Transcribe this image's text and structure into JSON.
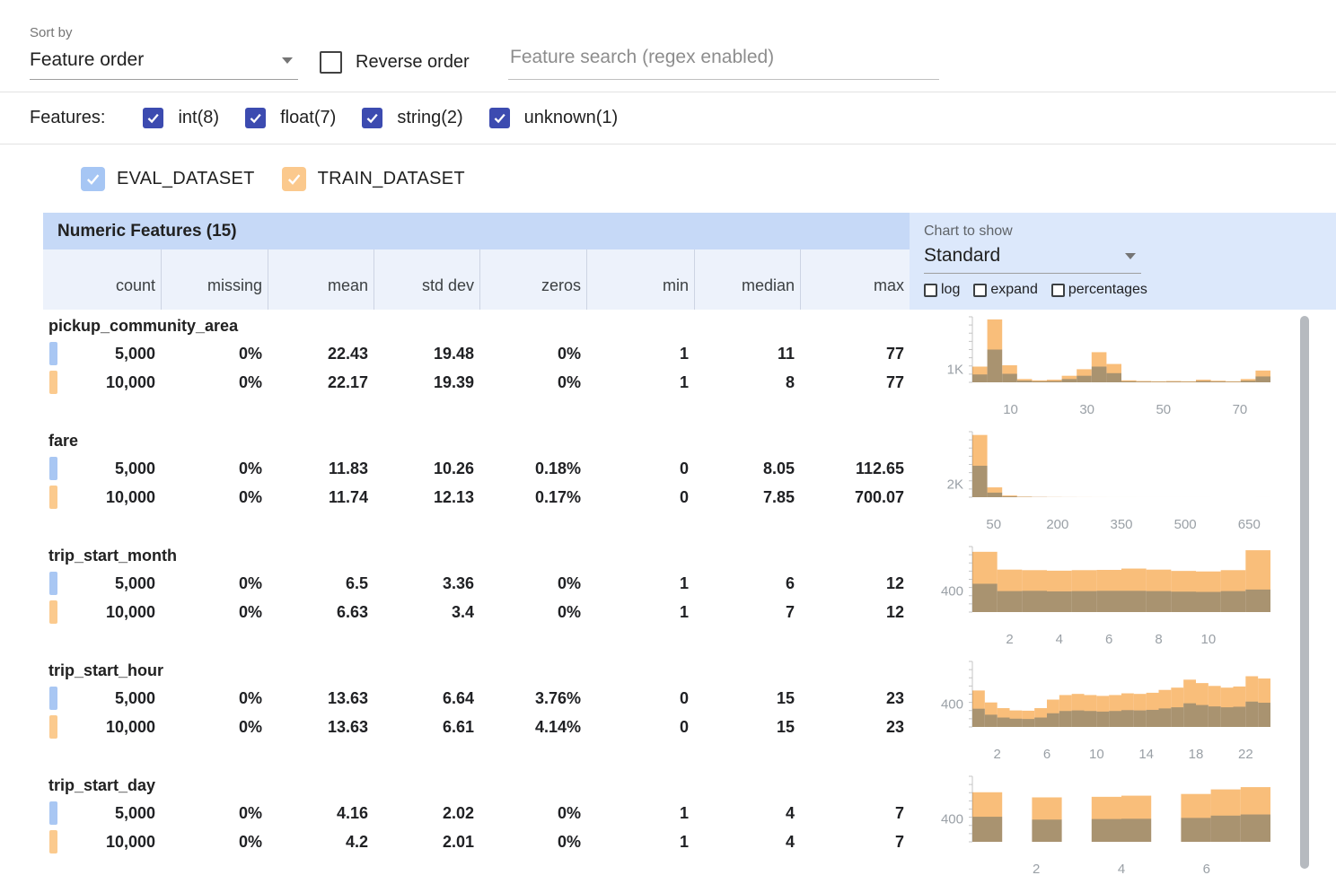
{
  "topbar": {
    "sort_by_label": "Sort by",
    "sort_value": "Feature order",
    "reverse_label": "Reverse order",
    "reverse_checked": false,
    "search_placeholder": "Feature search (regex enabled)"
  },
  "features_bar": {
    "label": "Features:",
    "types": [
      {
        "label": "int(8)",
        "checked": true
      },
      {
        "label": "float(7)",
        "checked": true
      },
      {
        "label": "string(2)",
        "checked": true
      },
      {
        "label": "unknown(1)",
        "checked": true
      }
    ]
  },
  "datasets": [
    {
      "name": "EVAL_DATASET",
      "checked": true,
      "swatch": "#a9c7f3"
    },
    {
      "name": "TRAIN_DATASET",
      "checked": true,
      "swatch": "#fbca8e"
    }
  ],
  "table": {
    "title": "Numeric Features (15)",
    "columns": [
      "count",
      "missing",
      "mean",
      "std dev",
      "zeros",
      "min",
      "median",
      "max"
    ]
  },
  "chart_controls": {
    "label": "Chart to show",
    "selected": "Standard",
    "checkboxes": [
      {
        "label": "log",
        "checked": false
      },
      {
        "label": "expand",
        "checked": false
      },
      {
        "label": "percentages",
        "checked": false
      }
    ]
  },
  "colors": {
    "eval_swatch": "#a9c7f3",
    "train_swatch": "#fbca8e",
    "eval_bar": "#adc6eb",
    "train_bar": "#f9be7a"
  },
  "features": [
    {
      "name": "pickup_community_area",
      "rows": [
        {
          "dataset": "eval",
          "count": "5,000",
          "missing": "0%",
          "mean": "22.43",
          "std_dev": "19.48",
          "zeros": "0%",
          "min": "1",
          "median": "11",
          "max": "77"
        },
        {
          "dataset": "train",
          "count": "10,000",
          "missing": "0%",
          "mean": "22.17",
          "std_dev": "19.39",
          "zeros": "0%",
          "min": "1",
          "median": "8",
          "max": "77"
        }
      ],
      "chart": {
        "type": "histogram",
        "y_label": "1K",
        "y_label_value": 1000,
        "y_max": 5000,
        "x_lo": 0,
        "x_hi": 78,
        "x_ticks": [
          10,
          30,
          50,
          70
        ],
        "eval": [
          600,
          2500,
          650,
          130,
          80,
          100,
          250,
          500,
          1200,
          700,
          80,
          50,
          40,
          50,
          40,
          100,
          60,
          40,
          120,
          450
        ],
        "train": [
          1200,
          4800,
          1300,
          250,
          150,
          200,
          500,
          1000,
          2300,
          1400,
          150,
          100,
          80,
          100,
          80,
          200,
          120,
          80,
          250,
          900
        ]
      }
    },
    {
      "name": "fare",
      "rows": [
        {
          "dataset": "eval",
          "count": "5,000",
          "missing": "0%",
          "mean": "11.83",
          "std_dev": "10.26",
          "zeros": "0.18%",
          "min": "0",
          "median": "8.05",
          "max": "112.65"
        },
        {
          "dataset": "train",
          "count": "10,000",
          "missing": "0%",
          "mean": "11.74",
          "std_dev": "12.13",
          "zeros": "0.17%",
          "min": "0",
          "median": "7.85",
          "max": "700.07"
        }
      ],
      "chart": {
        "type": "histogram",
        "y_label": "2K",
        "y_label_value": 2000,
        "y_max": 10000,
        "x_lo": 0,
        "x_hi": 700,
        "x_ticks": [
          50,
          200,
          350,
          500,
          650
        ],
        "eval": [
          4800,
          700,
          120,
          40,
          20,
          10,
          6,
          3,
          2,
          1,
          1,
          0,
          0,
          0,
          0,
          0,
          0,
          0,
          0,
          0
        ],
        "train": [
          9500,
          1500,
          260,
          90,
          45,
          25,
          14,
          9,
          6,
          4,
          3,
          2,
          2,
          1,
          1,
          1,
          0,
          0,
          0,
          1
        ]
      }
    },
    {
      "name": "trip_start_month",
      "rows": [
        {
          "dataset": "eval",
          "count": "5,000",
          "missing": "0%",
          "mean": "6.5",
          "std_dev": "3.36",
          "zeros": "0%",
          "min": "1",
          "median": "6",
          "max": "12"
        },
        {
          "dataset": "train",
          "count": "10,000",
          "missing": "0%",
          "mean": "6.63",
          "std_dev": "3.4",
          "zeros": "0%",
          "min": "1",
          "median": "7",
          "max": "12"
        }
      ],
      "chart": {
        "type": "histogram",
        "y_label": "400",
        "y_label_value": 400,
        "y_max": 1250,
        "x_lo": 0.5,
        "x_hi": 12.5,
        "x_ticks": [
          2,
          4,
          6,
          8,
          10
        ],
        "eval": [
          540,
          400,
          405,
          395,
          400,
          405,
          405,
          400,
          390,
          385,
          400,
          430
        ],
        "train": [
          1150,
          810,
          800,
          790,
          800,
          805,
          830,
          810,
          785,
          775,
          800,
          1180
        ]
      }
    },
    {
      "name": "trip_start_hour",
      "rows": [
        {
          "dataset": "eval",
          "count": "5,000",
          "missing": "0%",
          "mean": "13.63",
          "std_dev": "6.64",
          "zeros": "3.76%",
          "min": "0",
          "median": "15",
          "max": "23"
        },
        {
          "dataset": "train",
          "count": "10,000",
          "missing": "0%",
          "mean": "13.63",
          "std_dev": "6.61",
          "zeros": "4.14%",
          "min": "0",
          "median": "15",
          "max": "23"
        }
      ],
      "chart": {
        "type": "histogram",
        "y_label": "400",
        "y_label_value": 400,
        "y_max": 1150,
        "x_lo": 0,
        "x_hi": 24,
        "x_ticks": [
          2,
          6,
          10,
          14,
          18,
          22
        ],
        "eval": [
          320,
          215,
          165,
          145,
          140,
          165,
          240,
          280,
          290,
          280,
          270,
          280,
          295,
          290,
          300,
          325,
          345,
          415,
          385,
          360,
          345,
          355,
          445,
          425
        ],
        "train": [
          640,
          430,
          330,
          290,
          285,
          330,
          480,
          560,
          580,
          560,
          545,
          560,
          590,
          580,
          600,
          650,
          690,
          830,
          770,
          720,
          690,
          710,
          890,
          850
        ]
      }
    },
    {
      "name": "trip_start_day",
      "rows": [
        {
          "dataset": "eval",
          "count": "5,000",
          "missing": "0%",
          "mean": "4.16",
          "std_dev": "2.02",
          "zeros": "0%",
          "min": "1",
          "median": "4",
          "max": "7"
        },
        {
          "dataset": "train",
          "count": "10,000",
          "missing": "0%",
          "mean": "4.2",
          "std_dev": "2.01",
          "zeros": "0%",
          "min": "1",
          "median": "4",
          "max": "7"
        }
      ],
      "chart": {
        "type": "histogram",
        "y_label": "400",
        "y_label_value": 400,
        "y_max": 1150,
        "x_lo": 0.5,
        "x_hi": 7.5,
        "x_ticks": [
          2,
          4,
          6
        ],
        "eval": [
          440,
          0,
          390,
          0,
          400,
          405,
          0,
          420,
          460,
          480
        ],
        "train": [
          870,
          0,
          780,
          0,
          790,
          810,
          0,
          840,
          920,
          960
        ]
      }
    }
  ]
}
